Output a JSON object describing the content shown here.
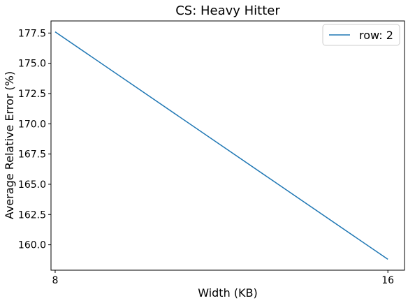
{
  "chart_data": {
    "type": "line",
    "title": "CS: Heavy Hitter",
    "xlabel": "Width (KB)",
    "ylabel": "Average Relative Error (%)",
    "x_ticks": [
      "8",
      "16"
    ],
    "y_ticks": [
      "160.0",
      "162.5",
      "165.0",
      "167.5",
      "170.0",
      "172.5",
      "175.0",
      "177.5"
    ],
    "xlim": [
      7.9,
      16.4
    ],
    "ylim": [
      157.9,
      178.5
    ],
    "legend_position": "top-right",
    "series": [
      {
        "name": "row: 2",
        "x": [
          8,
          16
        ],
        "y": [
          177.6,
          158.8
        ],
        "color": "#1f77b4"
      }
    ]
  }
}
